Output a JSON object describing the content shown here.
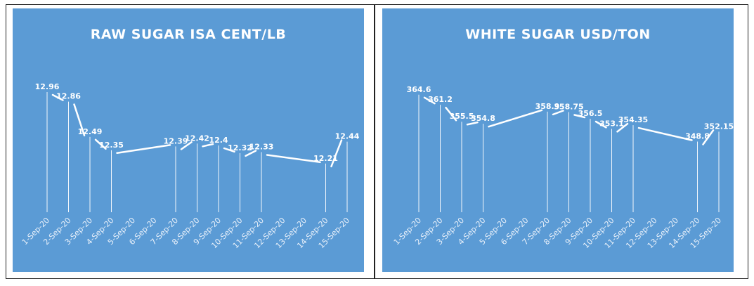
{
  "chart_data": [
    {
      "type": "line",
      "title": "RAW SUGAR ISA CENT/LB",
      "categories": [
        "1-Sep-20",
        "2-Sep-20",
        "3-Sep-20",
        "4-Sep-20",
        "5-Sep-20",
        "6-Sep-20",
        "7-Sep-20",
        "8-Sep-20",
        "9-Sep-20",
        "10-Sep-20",
        "11-Sep-20",
        "12-Sep-20",
        "13-Sep-20",
        "14-Sep-20",
        "15-Sep-20"
      ],
      "values": [
        12.96,
        12.86,
        12.49,
        12.35,
        null,
        null,
        12.39,
        12.42,
        12.4,
        12.32,
        12.33,
        null,
        null,
        12.21,
        12.44
      ],
      "labels": [
        "12.96",
        "12.86",
        "12.49",
        "12.35",
        "",
        "",
        "12.39",
        "12.42",
        "12.4",
        "12.32",
        "12.33",
        "",
        "",
        "12.21",
        "12.44"
      ],
      "ylim": [
        11.7,
        13.1
      ],
      "colors": {
        "background": "#5b9bd5",
        "line": "#ffffff"
      }
    },
    {
      "type": "line",
      "title": "WHITE SUGAR USD/TON",
      "categories": [
        "1-Sep-20",
        "2-Sep-20",
        "3-Sep-20",
        "4-Sep-20",
        "5-Sep-20",
        "6-Sep-20",
        "7-Sep-20",
        "8-Sep-20",
        "9-Sep-20",
        "10-Sep-20",
        "11-Sep-20",
        "12-Sep-20",
        "13-Sep-20",
        "14-Sep-20",
        "15-Sep-20"
      ],
      "values": [
        364.6,
        361.2,
        355.5,
        354.8,
        null,
        null,
        358.9,
        358.75,
        356.5,
        353.1,
        354.35,
        null,
        null,
        348.8,
        352.15
      ],
      "labels": [
        "364.6",
        "361.2",
        "355.5",
        "354.8",
        "",
        "",
        "358.9",
        "358.75",
        "356.5",
        "353.1",
        "354.35",
        "",
        "",
        "348.8",
        "352.15"
      ],
      "ylim": [
        325,
        370
      ],
      "colors": {
        "background": "#5b9bd5",
        "line": "#ffffff"
      }
    }
  ]
}
